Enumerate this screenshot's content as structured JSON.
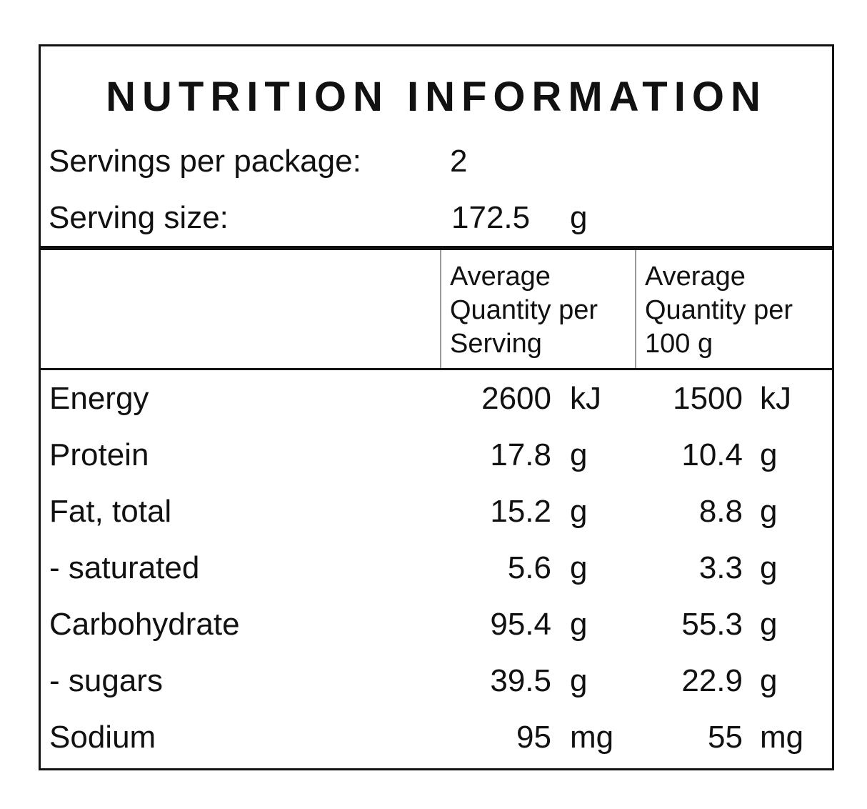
{
  "title": "NUTRITION INFORMATION",
  "servings": {
    "label": "Servings per package:",
    "value": "2"
  },
  "serving_size": {
    "label": "Serving size:",
    "value": "172.5",
    "unit": "g"
  },
  "table": {
    "headers": [
      [
        "Average",
        "Quantity per",
        "Serving"
      ],
      [
        "Average",
        "Quantity per",
        "100 g"
      ]
    ],
    "rows": [
      [
        "Energy",
        "2600",
        "kJ",
        "1500",
        "kJ"
      ],
      [
        "Protein",
        "17.8",
        "g",
        "10.4",
        "g"
      ],
      [
        "Fat, total",
        "15.2",
        "g",
        "8.8",
        "g"
      ],
      [
        "- saturated",
        "5.6",
        "g",
        "3.3",
        "g"
      ],
      [
        "Carbohydrate",
        "95.4",
        "g",
        "55.3",
        "g"
      ],
      [
        "- sugars",
        "39.5",
        "g",
        "22.9",
        "g"
      ],
      [
        "Sodium",
        "95",
        "mg",
        "55",
        "mg"
      ]
    ]
  }
}
